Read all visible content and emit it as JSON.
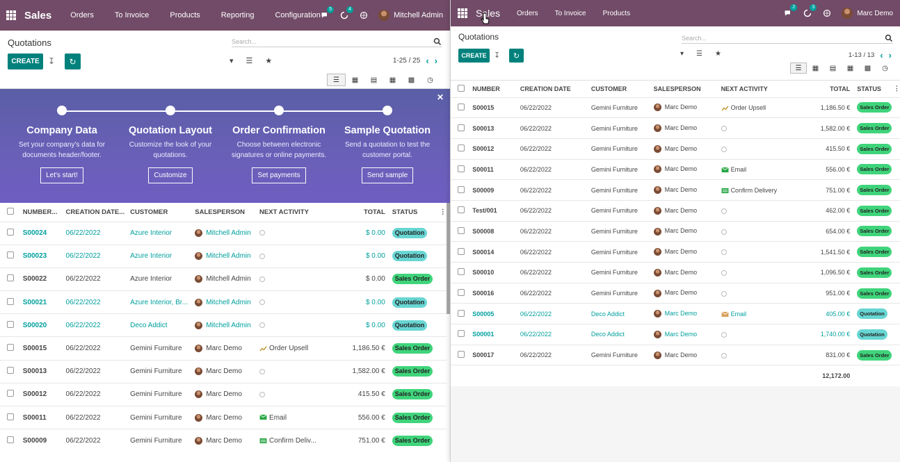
{
  "left": {
    "brand": "Sales",
    "menu": [
      "Orders",
      "To Invoice",
      "Products",
      "Reporting",
      "Configuration"
    ],
    "messages_badge": "5",
    "activities_badge": "4",
    "user": "Mitchell Admin",
    "breadcrumb": "Quotations",
    "create_label": "CREATE",
    "search_placeholder": "Search...",
    "pager": "1-25 / 25",
    "onboarding": [
      {
        "title": "Company Data",
        "desc": "Set your company's data for documents header/footer.",
        "button": "Let's start!"
      },
      {
        "title": "Quotation Layout",
        "desc": "Customize the look of your quotations.",
        "button": "Customize"
      },
      {
        "title": "Order Confirmation",
        "desc": "Choose between electronic signatures or online payments.",
        "button": "Set payments"
      },
      {
        "title": "Sample Quotation",
        "desc": "Send a quotation to test the customer portal.",
        "button": "Send sample"
      }
    ],
    "columns": [
      "NUMBER...",
      "CREATION DATE...",
      "CUSTOMER",
      "SALESPERSON",
      "NEXT ACTIVITY",
      "TOTAL",
      "STATUS"
    ],
    "rows": [
      {
        "number": "S00024",
        "date": "06/22/2022",
        "customer": "Azure Interior",
        "salesperson": "Mitchell Admin",
        "activity": "",
        "total": "$ 0.00",
        "status": "Quotation",
        "quote": true
      },
      {
        "number": "S00023",
        "date": "06/22/2022",
        "customer": "Azure Interior",
        "salesperson": "Mitchell Admin",
        "activity": "",
        "total": "$ 0.00",
        "status": "Quotation",
        "quote": true
      },
      {
        "number": "S00022",
        "date": "06/22/2022",
        "customer": "Azure Interior",
        "salesperson": "Mitchell Admin",
        "activity": "",
        "total": "$ 0.00",
        "status": "Sales Order",
        "quote": false
      },
      {
        "number": "S00021",
        "date": "06/22/2022",
        "customer": "Azure Interior, Br...",
        "salesperson": "Mitchell Admin",
        "activity": "",
        "total": "$ 0.00",
        "status": "Quotation",
        "quote": true
      },
      {
        "number": "S00020",
        "date": "06/22/2022",
        "customer": "Deco Addict",
        "salesperson": "Mitchell Admin",
        "activity": "",
        "total": "$ 0.00",
        "status": "Quotation",
        "quote": true
      },
      {
        "number": "S00015",
        "date": "06/22/2022",
        "customer": "Gemini Furniture",
        "salesperson": "Marc Demo",
        "activity": "Order Upsell",
        "act_icon": "chart",
        "total": "1,186.50 €",
        "status": "Sales Order",
        "quote": false
      },
      {
        "number": "S00013",
        "date": "06/22/2022",
        "customer": "Gemini Furniture",
        "salesperson": "Marc Demo",
        "activity": "",
        "total": "1,582.00 €",
        "status": "Sales Order",
        "quote": false
      },
      {
        "number": "S00012",
        "date": "06/22/2022",
        "customer": "Gemini Furniture",
        "salesperson": "Marc Demo",
        "activity": "",
        "total": "415.50 €",
        "status": "Sales Order",
        "quote": false
      },
      {
        "number": "S00011",
        "date": "06/22/2022",
        "customer": "Gemini Furniture",
        "salesperson": "Marc Demo",
        "activity": "Email",
        "act_icon": "mail",
        "total": "556.00 €",
        "status": "Sales Order",
        "quote": false
      },
      {
        "number": "S00009",
        "date": "06/22/2022",
        "customer": "Gemini Furniture",
        "salesperson": "Marc Demo",
        "activity": "Confirm Deliv...",
        "act_icon": "truck",
        "total": "751.00 €",
        "status": "Sales Order",
        "quote": false
      }
    ]
  },
  "right": {
    "brand": "Sales",
    "menu": [
      "Orders",
      "To Invoice",
      "Products"
    ],
    "messages_badge": "2",
    "activities_badge": "3",
    "user": "Marc Demo",
    "breadcrumb": "Quotations",
    "create_label": "CREATE",
    "search_placeholder": "Search...",
    "pager": "1-13 / 13",
    "columns": [
      "NUMBER",
      "CREATION DATE",
      "CUSTOMER",
      "SALESPERSON",
      "NEXT ACTIVITY",
      "TOTAL",
      "STATUS"
    ],
    "rows": [
      {
        "number": "S00015",
        "date": "06/22/2022",
        "customer": "Gemini Furniture",
        "salesperson": "Marc Demo",
        "activity": "Order Upsell",
        "act_icon": "chart",
        "total": "1,186.50 €",
        "status": "Sales Order",
        "quote": false
      },
      {
        "number": "S00013",
        "date": "06/22/2022",
        "customer": "Gemini Furniture",
        "salesperson": "Marc Demo",
        "activity": "",
        "total": "1,582.00 €",
        "status": "Sales Order",
        "quote": false
      },
      {
        "number": "S00012",
        "date": "06/22/2022",
        "customer": "Gemini Furniture",
        "salesperson": "Marc Demo",
        "activity": "",
        "total": "415.50 €",
        "status": "Sales Order",
        "quote": false
      },
      {
        "number": "S00011",
        "date": "06/22/2022",
        "customer": "Gemini Furniture",
        "salesperson": "Marc Demo",
        "activity": "Email",
        "act_icon": "mail",
        "total": "556.00 €",
        "status": "Sales Order",
        "quote": false
      },
      {
        "number": "S00009",
        "date": "06/22/2022",
        "customer": "Gemini Furniture",
        "salesperson": "Marc Demo",
        "activity": "Confirm Delivery",
        "act_icon": "truck",
        "total": "751.00 €",
        "status": "Sales Order",
        "quote": false
      },
      {
        "number": "Test/001",
        "date": "06/22/2022",
        "customer": "Gemini Furniture",
        "salesperson": "Marc Demo",
        "activity": "",
        "total": "462.00 €",
        "status": "Sales Order",
        "quote": false
      },
      {
        "number": "S00008",
        "date": "06/22/2022",
        "customer": "Gemini Furniture",
        "salesperson": "Marc Demo",
        "activity": "",
        "total": "654.00 €",
        "status": "Sales Order",
        "quote": false
      },
      {
        "number": "S00014",
        "date": "06/22/2022",
        "customer": "Gemini Furniture",
        "salesperson": "Marc Demo",
        "activity": "",
        "total": "1,541.50 €",
        "status": "Sales Order",
        "quote": false
      },
      {
        "number": "S00010",
        "date": "06/22/2022",
        "customer": "Gemini Furniture",
        "salesperson": "Marc Demo",
        "activity": "",
        "total": "1,096.50 €",
        "status": "Sales Order",
        "quote": false
      },
      {
        "number": "S00016",
        "date": "06/22/2022",
        "customer": "Gemini Furniture",
        "salesperson": "Marc Demo",
        "activity": "",
        "total": "951.00 €",
        "status": "Sales Order",
        "quote": false
      },
      {
        "number": "S00005",
        "date": "06/22/2022",
        "customer": "Deco Addict",
        "salesperson": "Marc Demo",
        "activity": "Email",
        "act_icon": "mail-orange",
        "total": "405.00 €",
        "status": "Quotation",
        "quote": true
      },
      {
        "number": "S00001",
        "date": "06/22/2022",
        "customer": "Deco Addict",
        "salesperson": "Marc Demo",
        "activity": "",
        "total": "1,740.00 €",
        "status": "Quotation",
        "quote": true
      },
      {
        "number": "S00017",
        "date": "06/22/2022",
        "customer": "Gemini Furniture",
        "salesperson": "Marc Demo",
        "activity": "",
        "total": "831.00 €",
        "status": "Sales Order",
        "quote": false
      }
    ],
    "grand_total": "12,172.00"
  },
  "colors": {
    "topbar": "#714b67",
    "accent": "#00a09d",
    "button": "#00817c",
    "sales_order": "#3fd47b",
    "quotation": "#68d6d3"
  }
}
